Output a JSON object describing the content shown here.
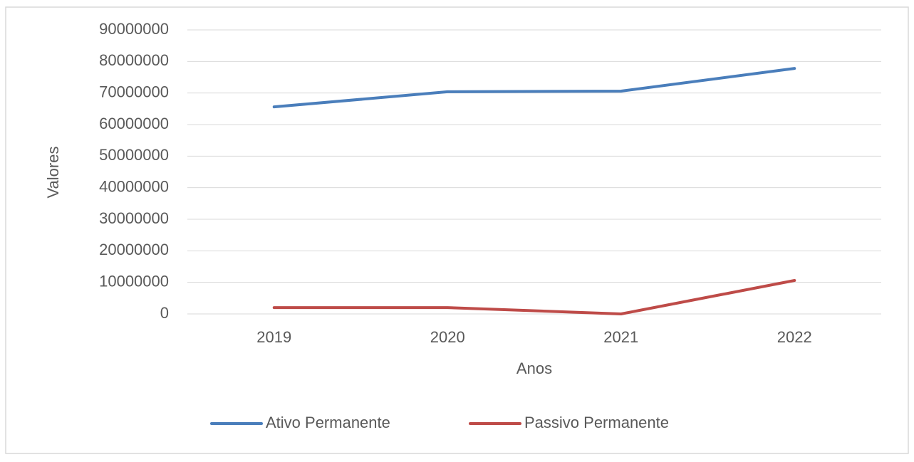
{
  "chart_data": {
    "type": "line",
    "x_label": "Anos",
    "y_label": "Valores",
    "categories": [
      "2019",
      "2020",
      "2021",
      "2022"
    ],
    "series": [
      {
        "name": "Ativo Permanente",
        "color": "#4a7ebb",
        "values": [
          65600000,
          70400000,
          70600000,
          77800000
        ]
      },
      {
        "name": "Passivo Permanente",
        "color": "#be4b48",
        "values": [
          2000000,
          2000000,
          0,
          10600000
        ]
      }
    ],
    "ylim": [
      0,
      90000000
    ],
    "yticks": [
      0,
      10000000,
      20000000,
      30000000,
      40000000,
      50000000,
      60000000,
      70000000,
      80000000,
      90000000
    ],
    "grid": true,
    "legend": "bottom"
  }
}
